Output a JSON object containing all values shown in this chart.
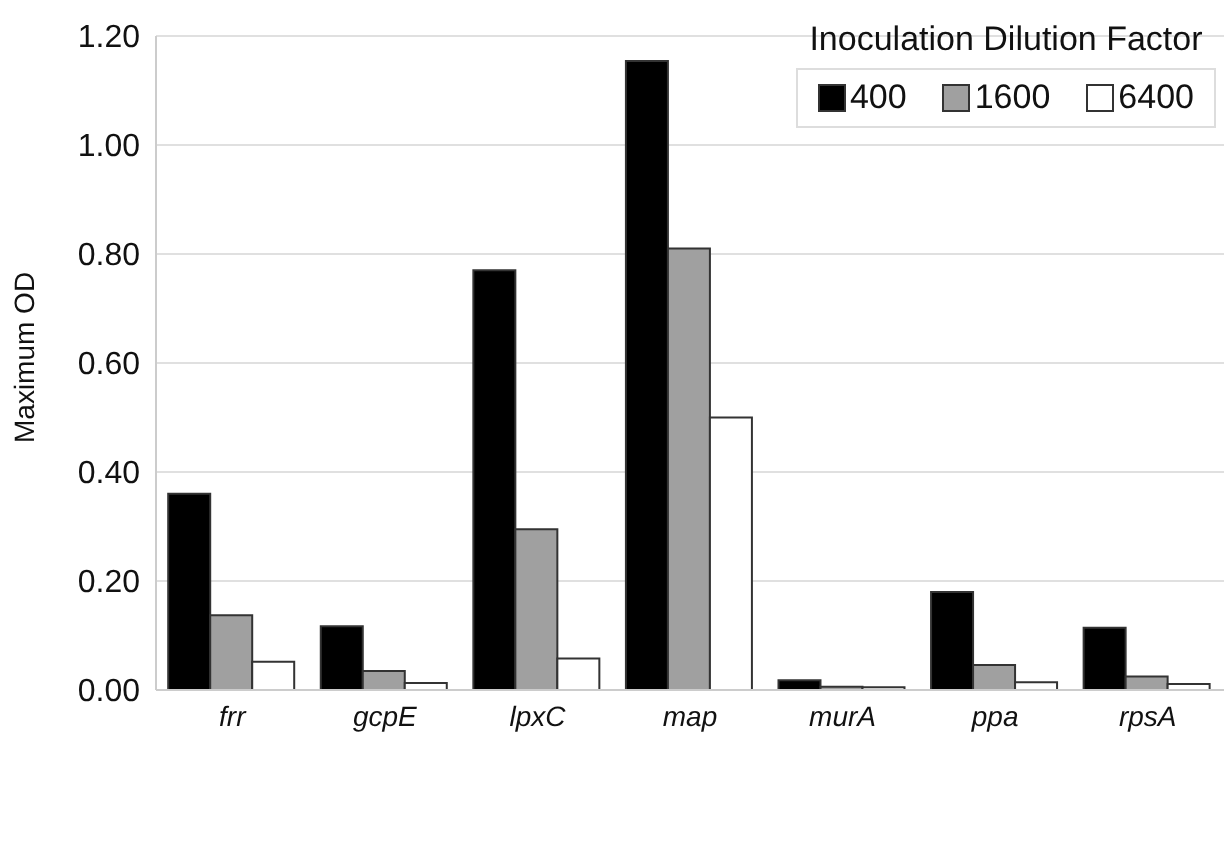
{
  "chart_data": {
    "type": "bar",
    "ylabel": "Maximum OD",
    "legend_title": "Inoculation Dilution Factor",
    "categories": [
      "frr",
      "gcpE",
      "lpxC",
      "map",
      "murA",
      "ppa",
      "rpsA"
    ],
    "series": [
      {
        "name": "400",
        "color": "#000000",
        "values": [
          0.36,
          0.117,
          0.77,
          1.154,
          0.018,
          0.18,
          0.114
        ]
      },
      {
        "name": "1600",
        "color": "#a0a0a0",
        "values": [
          0.137,
          0.035,
          0.295,
          0.81,
          0.006,
          0.046,
          0.025
        ]
      },
      {
        "name": "6400",
        "color": "#ffffff",
        "values": [
          0.052,
          0.013,
          0.058,
          0.5,
          0.005,
          0.014,
          0.011
        ]
      }
    ],
    "ylim": [
      0,
      1.2
    ],
    "yticks": [
      {
        "value": 0,
        "label": "0.00"
      },
      {
        "value": 0.2,
        "label": "0.20"
      },
      {
        "value": 0.4,
        "label": "0.40"
      },
      {
        "value": 0.6,
        "label": "0.60"
      },
      {
        "value": 0.8,
        "label": "0.80"
      },
      {
        "value": 1,
        "label": "1.00"
      },
      {
        "value": 1.2,
        "label": "1.20"
      }
    ],
    "grid": "y",
    "legend": "top right"
  }
}
